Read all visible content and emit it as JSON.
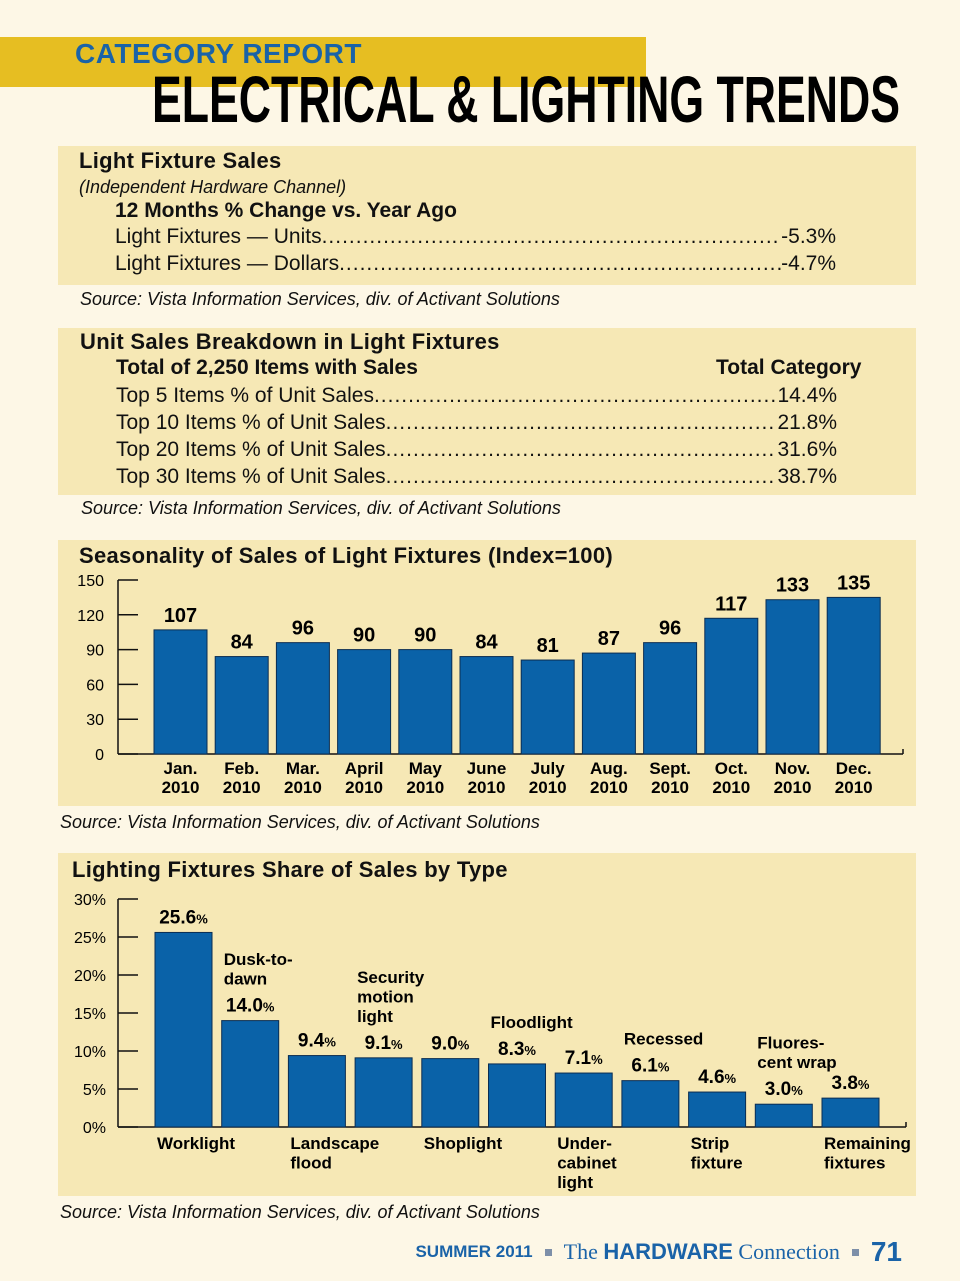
{
  "header": {
    "kicker": "CATEGORY REPORT",
    "title": "ELECTRICAL & LIGHTING TRENDS"
  },
  "colors": {
    "band": "#e6be22",
    "panel": "#f6e8b5",
    "bar": "#0a62a8",
    "kicker": "#1a63a8",
    "background": "#fdf7e6"
  },
  "fixture_sales": {
    "title": "Light Fixture Sales",
    "subtitle": "(Independent Hardware Channel)",
    "heading": "12 Months % Change vs. Year Ago",
    "rows": [
      {
        "label": "Light Fixtures — Units",
        "value": "-5.3%"
      },
      {
        "label": "Light Fixtures — Dollars",
        "value": "-4.7%"
      }
    ],
    "source": "Source: Vista Information Services, div. of Activant Solutions"
  },
  "unit_breakdown": {
    "title": "Unit Sales Breakdown in Light Fixtures",
    "heading": "Total of 2,250 Items with Sales",
    "column": "Total Category",
    "rows": [
      {
        "label": "Top 5 Items % of Unit Sales",
        "value": "14.4%"
      },
      {
        "label": "Top 10 Items % of Unit Sales",
        "value": "21.8%"
      },
      {
        "label": "Top 20 Items % of Unit Sales",
        "value": "31.6%"
      },
      {
        "label": "Top 30 Items % of Unit Sales",
        "value": "38.7%"
      }
    ],
    "source": "Source: Vista Information Services, div. of Activant Solutions"
  },
  "chart_data": [
    {
      "type": "bar",
      "title": "Seasonality of Sales of Light Fixtures (Index=100)",
      "categories": [
        [
          "Jan.",
          "2010"
        ],
        [
          "Feb.",
          "2010"
        ],
        [
          "Mar.",
          "2010"
        ],
        [
          "April",
          "2010"
        ],
        [
          "May",
          "2010"
        ],
        [
          "June",
          "2010"
        ],
        [
          "July",
          "2010"
        ],
        [
          "Aug.",
          "2010"
        ],
        [
          "Sept.",
          "2010"
        ],
        [
          "Oct.",
          "2010"
        ],
        [
          "Nov.",
          "2010"
        ],
        [
          "Dec.",
          "2010"
        ]
      ],
      "values": [
        107,
        84,
        96,
        90,
        90,
        84,
        81,
        87,
        96,
        117,
        133,
        135
      ],
      "yticks": [
        "0",
        "30",
        "60",
        "90",
        "120",
        "150"
      ],
      "ylim": [
        0,
        150
      ],
      "grid": false,
      "source": "Source: Vista Information Services, div. of Activant Solutions"
    },
    {
      "type": "bar",
      "title": "Lighting Fixtures Share of Sales by Type",
      "categories": [
        {
          "lines": [
            "Worklight"
          ],
          "placement": "below"
        },
        {
          "lines": [
            "Dusk-to-",
            "dawn"
          ],
          "placement": "above"
        },
        {
          "lines": [
            "Landscape",
            "flood"
          ],
          "placement": "below"
        },
        {
          "lines": [
            "Security",
            "motion",
            "light"
          ],
          "placement": "above"
        },
        {
          "lines": [
            "Shoplight"
          ],
          "placement": "below"
        },
        {
          "lines": [
            "Floodlight"
          ],
          "placement": "above"
        },
        {
          "lines": [
            "Under-",
            "cabinet",
            "light"
          ],
          "placement": "below"
        },
        {
          "lines": [
            "Recessed"
          ],
          "placement": "above"
        },
        {
          "lines": [
            "Strip",
            "fixture"
          ],
          "placement": "below"
        },
        {
          "lines": [
            "Fluores-",
            "cent wrap"
          ],
          "placement": "above"
        },
        {
          "lines": [
            "Remaining",
            "fixtures"
          ],
          "placement": "below"
        }
      ],
      "values": [
        25.6,
        14.0,
        9.4,
        9.1,
        9.0,
        8.3,
        7.1,
        6.1,
        4.6,
        3.0,
        3.8
      ],
      "value_labels": [
        "25.6",
        "14.0",
        "9.4",
        "9.1",
        "9.0",
        "8.3",
        "7.1",
        "6.1",
        "4.6",
        "3.0",
        "3.8"
      ],
      "unit": "%",
      "yticks": [
        "0%",
        "5%",
        "10%",
        "15%",
        "20%",
        "25%",
        "30%"
      ],
      "ylim": [
        0,
        30
      ],
      "grid": false,
      "source": "Source: Vista Information Services, div. of Activant Solutions"
    }
  ],
  "footer": {
    "season": "SUMMER 2011",
    "mag_the": "The",
    "mag_name": "HARDWARE",
    "mag_rest": "Connection",
    "page": "71"
  }
}
